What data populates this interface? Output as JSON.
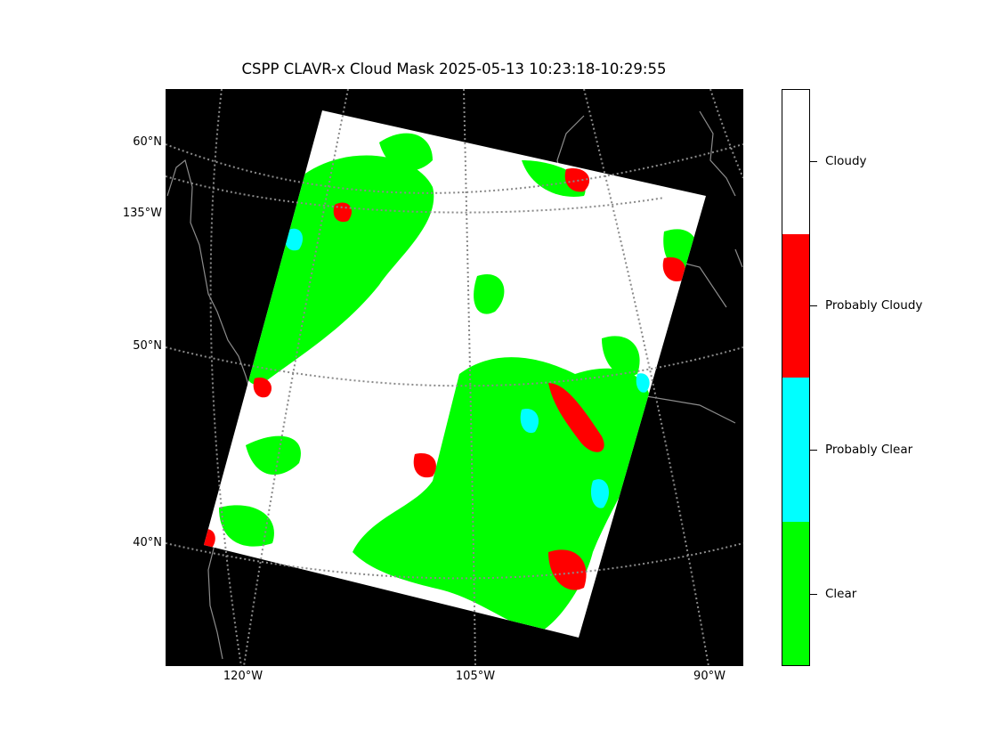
{
  "title": "CSPP CLAVR-x Cloud Mask 2025-05-13 10:23:18-10:29:55",
  "colors": {
    "background": "#000000",
    "clear": "#00ff00",
    "probably_clear": "#00ffff",
    "probably_cloudy": "#ff0000",
    "cloudy": "#ffffff",
    "graticule": "#888888",
    "coastline": "#8c8c8c"
  },
  "lat_labels": [
    "60°N",
    "135°W",
    "50°N",
    "40°N"
  ],
  "lon_labels": [
    "120°W",
    "105°W",
    "90°W"
  ],
  "colorbar": {
    "categories": [
      "Cloudy",
      "Probably Cloudy",
      "Probably Clear",
      "Clear"
    ]
  }
}
